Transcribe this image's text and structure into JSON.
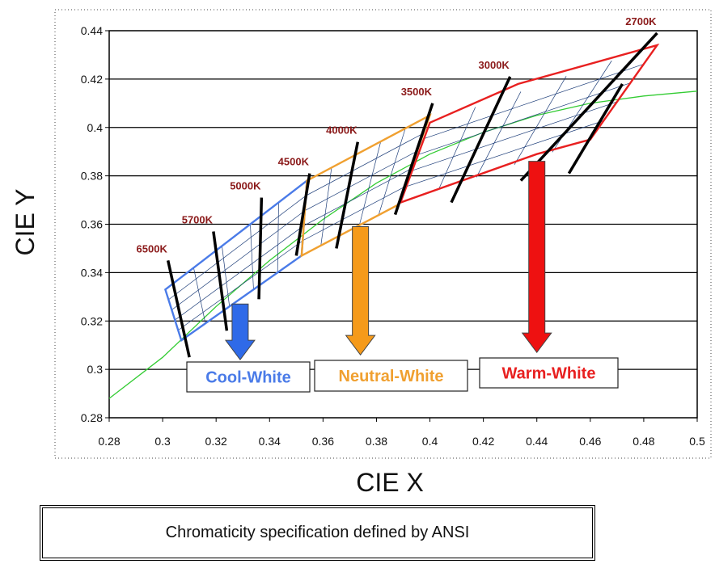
{
  "chart_data": {
    "type": "line",
    "xlabel": "CIE X",
    "ylabel": "CIE Y",
    "xlim": [
      0.28,
      0.5
    ],
    "ylim": [
      0.28,
      0.44
    ],
    "x_ticks": [
      "0.28",
      "0.3",
      "0.32",
      "0.34",
      "0.36",
      "0.38",
      "0.4",
      "0.42",
      "0.44",
      "0.46",
      "0.48",
      "0.5"
    ],
    "y_ticks": [
      "0.28",
      "0.3",
      "0.32",
      "0.34",
      "0.36",
      "0.38",
      "0.4",
      "0.42",
      "0.44"
    ],
    "grid": "horizontal",
    "planckian_locus": {
      "color": "#33cc33",
      "points": [
        [
          0.28,
          0.288
        ],
        [
          0.3,
          0.305
        ],
        [
          0.32,
          0.326
        ],
        [
          0.34,
          0.345
        ],
        [
          0.36,
          0.362
        ],
        [
          0.38,
          0.377
        ],
        [
          0.4,
          0.389
        ],
        [
          0.42,
          0.398
        ],
        [
          0.44,
          0.405
        ],
        [
          0.46,
          0.41
        ],
        [
          0.48,
          0.413
        ],
        [
          0.5,
          0.415
        ]
      ]
    },
    "cct_lines": [
      {
        "label": "6500K",
        "start": [
          0.302,
          0.345
        ],
        "end": [
          0.31,
          0.305
        ]
      },
      {
        "label": "5700K",
        "start": [
          0.319,
          0.357
        ],
        "end": [
          0.324,
          0.316
        ]
      },
      {
        "label": "5000K",
        "start": [
          0.337,
          0.371
        ],
        "end": [
          0.336,
          0.329
        ]
      },
      {
        "label": "4500K",
        "start": [
          0.355,
          0.381
        ],
        "end": [
          0.35,
          0.347
        ]
      },
      {
        "label": "4000K",
        "start": [
          0.373,
          0.394
        ],
        "end": [
          0.365,
          0.35
        ]
      },
      {
        "label": "3500K",
        "start": [
          0.401,
          0.41
        ],
        "end": [
          0.387,
          0.364
        ]
      },
      {
        "label": "3000K",
        "start": [
          0.43,
          0.421
        ],
        "end": [
          0.408,
          0.369
        ]
      },
      {
        "label": "2700K",
        "start": [
          0.485,
          0.439
        ],
        "end": [
          0.434,
          0.378
        ]
      },
      {
        "label": "",
        "start": [
          0.472,
          0.418
        ],
        "end": [
          0.452,
          0.381
        ]
      }
    ],
    "regions": [
      {
        "name": "Cool-White",
        "color": "#4a7be8",
        "polygon": [
          [
            0.301,
            0.333
          ],
          [
            0.354,
            0.378
          ],
          [
            0.352,
            0.347
          ],
          [
            0.307,
            0.312
          ]
        ]
      },
      {
        "name": "Neutral-White",
        "color": "#f0a030",
        "polygon": [
          [
            0.354,
            0.378
          ],
          [
            0.4,
            0.405
          ],
          [
            0.388,
            0.368
          ],
          [
            0.352,
            0.347
          ]
        ]
      },
      {
        "name": "Warm-White",
        "color": "#e82020",
        "polygon": [
          [
            0.4,
            0.402
          ],
          [
            0.433,
            0.418
          ],
          [
            0.485,
            0.434
          ],
          [
            0.46,
            0.395
          ],
          [
            0.44,
            0.389
          ],
          [
            0.389,
            0.369
          ]
        ]
      }
    ],
    "arrows": [
      {
        "label": "Cool-White",
        "color": "#2f6ae8",
        "x": 0.329,
        "y_top": 0.327,
        "y_bottom": 0.304
      },
      {
        "label": "Neutral-White",
        "color": "#f59a1a",
        "x": 0.374,
        "y_top": 0.359,
        "y_bottom": 0.306
      },
      {
        "label": "Warm-White",
        "color": "#ee1111",
        "x": 0.44,
        "y_top": 0.386,
        "y_bottom": 0.307
      }
    ]
  }
}
